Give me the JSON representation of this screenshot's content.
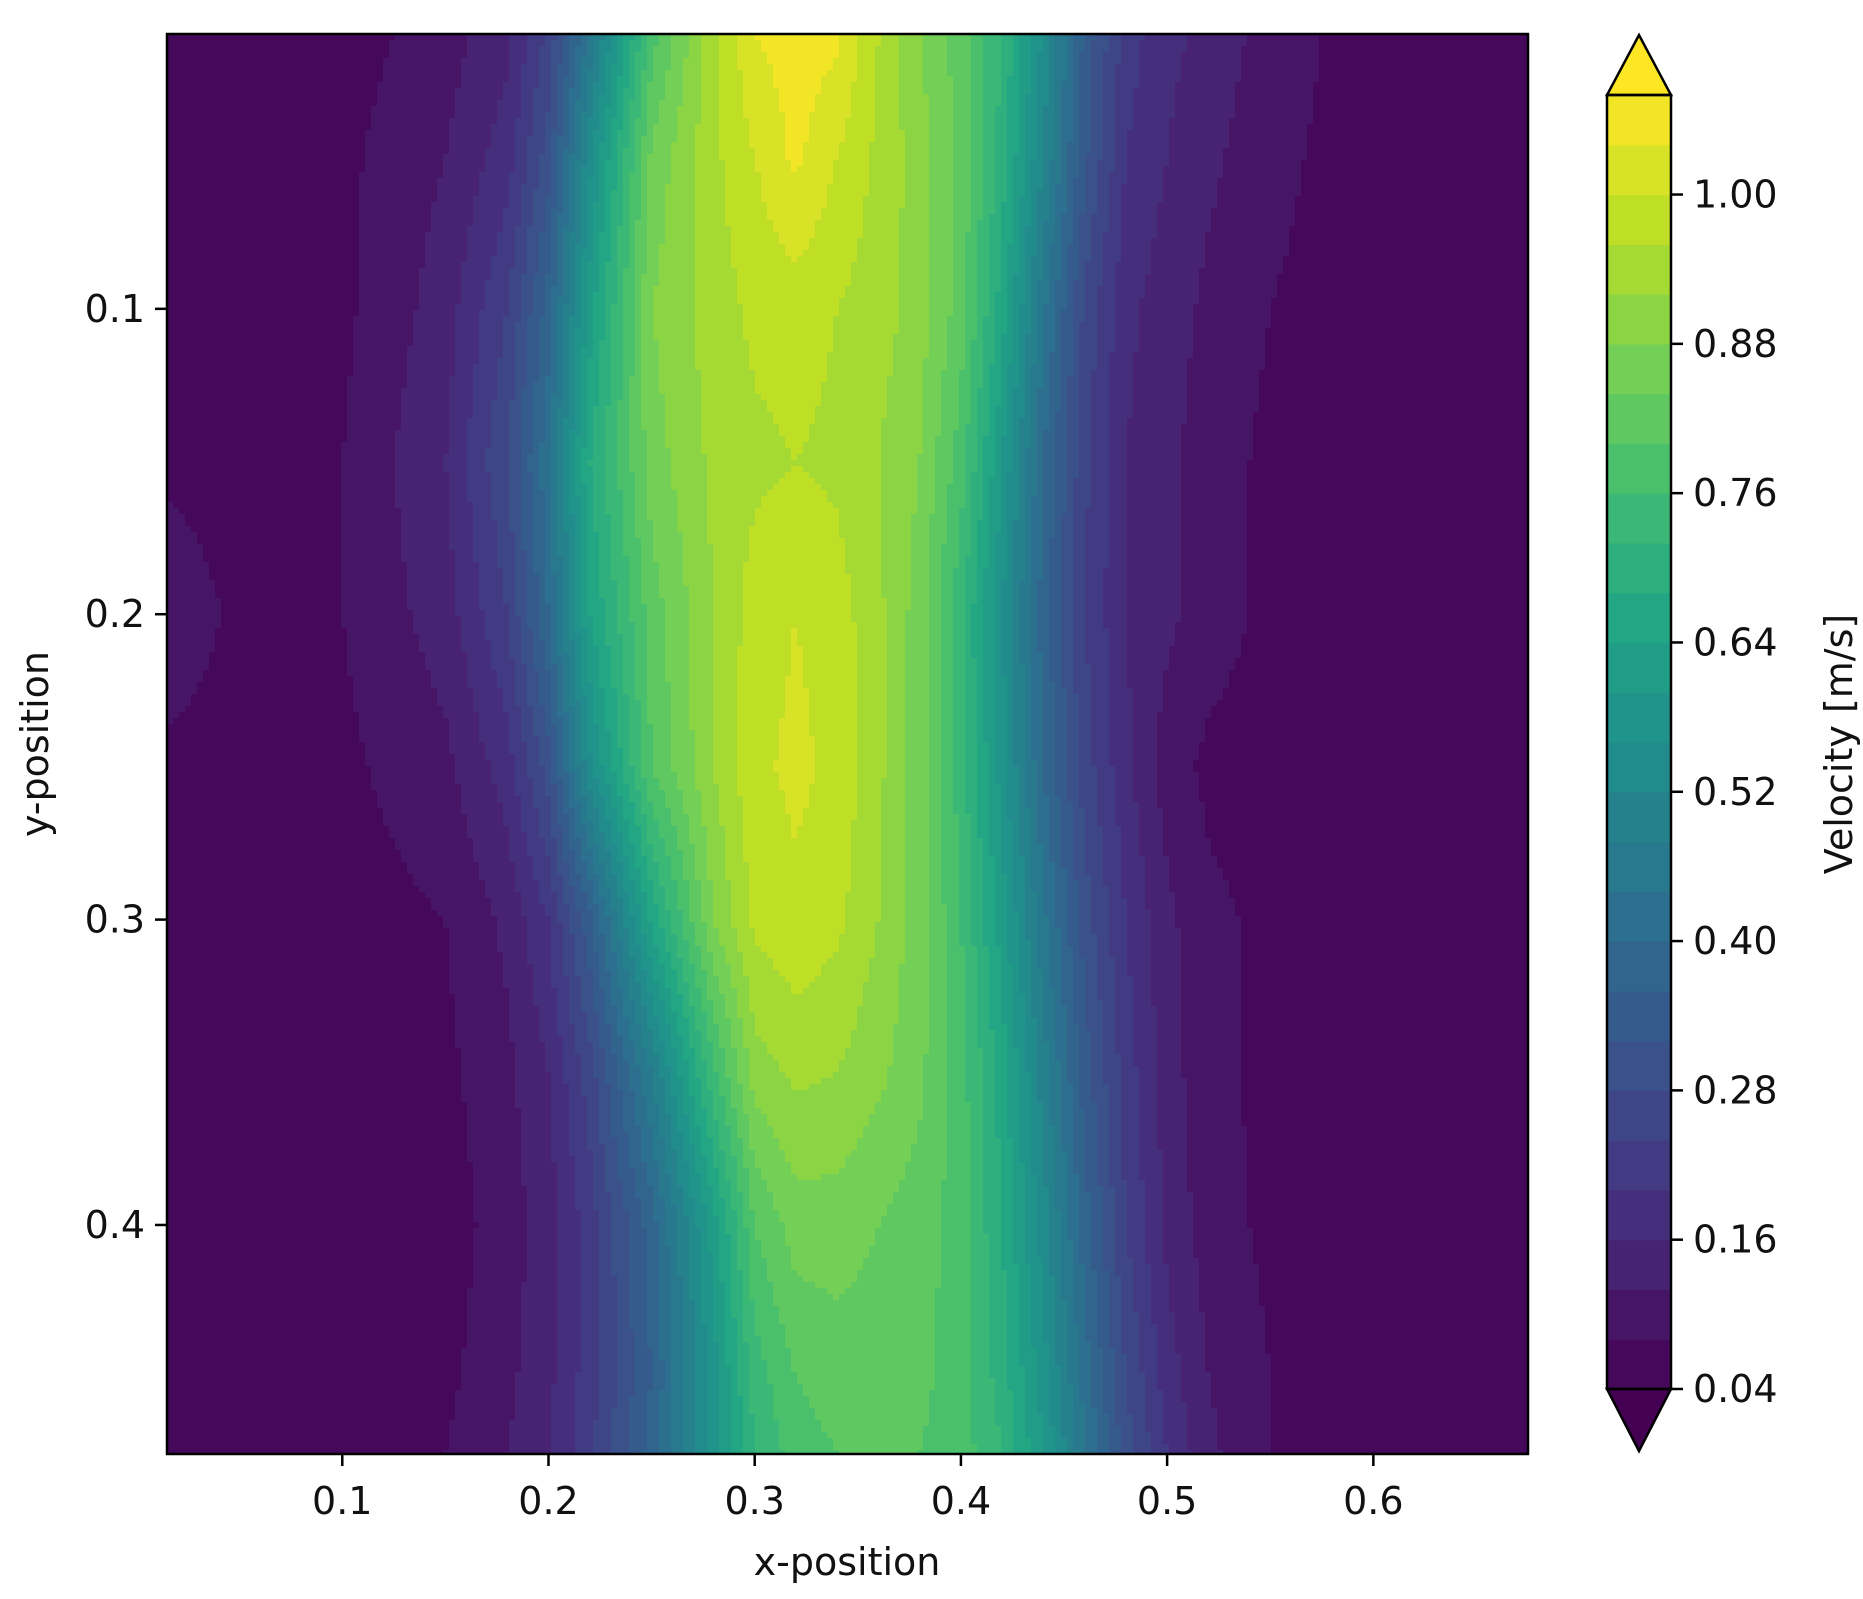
{
  "chart_data": {
    "type": "heatmap",
    "title": "",
    "xlabel": "x-position",
    "ylabel": "y-position",
    "xlim": [
      0.015,
      0.675
    ],
    "ylim": [
      0.475,
      0.01
    ],
    "y_inverted": true,
    "grid": false,
    "xticks": [
      0.1,
      0.2,
      0.3,
      0.4,
      0.5,
      0.6
    ],
    "xtick_labels": [
      "0.1",
      "0.2",
      "0.3",
      "0.4",
      "0.5",
      "0.6"
    ],
    "yticks": [
      0.1,
      0.2,
      0.3,
      0.4
    ],
    "ytick_labels": [
      "0.1",
      "0.2",
      "0.3",
      "0.4"
    ],
    "colorbar": {
      "label": "Velocity [m/s]",
      "colormap": "viridis",
      "range": [
        0.04,
        1.08
      ],
      "extend": "both",
      "ticks": [
        0.04,
        0.16,
        0.28,
        0.4,
        0.52,
        0.64,
        0.76,
        0.88,
        1.0
      ],
      "tick_labels": [
        "0.04",
        "0.16",
        "0.28",
        "0.40",
        "0.52",
        "0.64",
        "0.76",
        "0.88",
        "1.00"
      ]
    },
    "y_grid": [
      0.01,
      0.05,
      0.1,
      0.15,
      0.2,
      0.25,
      0.3,
      0.35,
      0.4,
      0.45,
      0.475
    ],
    "x_grid": [
      0.015,
      0.05,
      0.1,
      0.15,
      0.18,
      0.2,
      0.22,
      0.25,
      0.28,
      0.3,
      0.32,
      0.34,
      0.36,
      0.38,
      0.4,
      0.42,
      0.44,
      0.46,
      0.48,
      0.5,
      0.52,
      0.55,
      0.6,
      0.675
    ],
    "velocity": [
      [
        0.06,
        0.06,
        0.06,
        0.1,
        0.15,
        0.25,
        0.45,
        0.78,
        0.95,
        1.04,
        1.06,
        1.05,
        0.96,
        0.88,
        0.82,
        0.72,
        0.55,
        0.35,
        0.22,
        0.17,
        0.15,
        0.1,
        0.06,
        0.06
      ],
      [
        0.06,
        0.06,
        0.07,
        0.12,
        0.18,
        0.3,
        0.55,
        0.85,
        0.95,
        1.0,
        1.05,
        1.0,
        0.95,
        0.9,
        0.83,
        0.7,
        0.52,
        0.33,
        0.2,
        0.16,
        0.13,
        0.09,
        0.06,
        0.06
      ],
      [
        0.06,
        0.06,
        0.07,
        0.14,
        0.24,
        0.38,
        0.62,
        0.88,
        0.94,
        0.97,
        0.98,
        0.96,
        0.94,
        0.9,
        0.82,
        0.66,
        0.45,
        0.27,
        0.17,
        0.14,
        0.11,
        0.08,
        0.06,
        0.06
      ],
      [
        0.07,
        0.06,
        0.08,
        0.16,
        0.28,
        0.43,
        0.68,
        0.86,
        0.93,
        0.95,
        0.96,
        0.95,
        0.92,
        0.88,
        0.78,
        0.6,
        0.4,
        0.25,
        0.16,
        0.13,
        0.1,
        0.07,
        0.06,
        0.06
      ],
      [
        0.11,
        0.07,
        0.08,
        0.14,
        0.24,
        0.4,
        0.64,
        0.82,
        0.92,
        0.98,
        1.0,
        0.98,
        0.93,
        0.86,
        0.73,
        0.56,
        0.38,
        0.24,
        0.16,
        0.13,
        0.1,
        0.07,
        0.06,
        0.06
      ],
      [
        0.07,
        0.06,
        0.07,
        0.11,
        0.18,
        0.3,
        0.55,
        0.8,
        0.92,
        0.99,
        1.01,
        0.99,
        0.93,
        0.86,
        0.74,
        0.58,
        0.4,
        0.26,
        0.17,
        0.1,
        0.07,
        0.06,
        0.06,
        0.06
      ],
      [
        0.06,
        0.06,
        0.06,
        0.08,
        0.13,
        0.2,
        0.35,
        0.65,
        0.88,
        0.97,
        0.99,
        0.97,
        0.92,
        0.86,
        0.76,
        0.62,
        0.45,
        0.3,
        0.2,
        0.13,
        0.09,
        0.07,
        0.06,
        0.06
      ],
      [
        0.06,
        0.06,
        0.05,
        0.07,
        0.11,
        0.16,
        0.26,
        0.48,
        0.75,
        0.9,
        0.93,
        0.92,
        0.89,
        0.85,
        0.78,
        0.66,
        0.5,
        0.34,
        0.22,
        0.14,
        0.09,
        0.07,
        0.06,
        0.06
      ],
      [
        0.06,
        0.06,
        0.05,
        0.06,
        0.1,
        0.14,
        0.22,
        0.38,
        0.62,
        0.8,
        0.86,
        0.86,
        0.84,
        0.82,
        0.78,
        0.68,
        0.54,
        0.38,
        0.24,
        0.15,
        0.1,
        0.07,
        0.06,
        0.06
      ],
      [
        0.06,
        0.06,
        0.06,
        0.07,
        0.11,
        0.15,
        0.22,
        0.36,
        0.58,
        0.74,
        0.8,
        0.82,
        0.82,
        0.81,
        0.78,
        0.7,
        0.58,
        0.42,
        0.28,
        0.18,
        0.12,
        0.08,
        0.06,
        0.06
      ],
      [
        0.06,
        0.06,
        0.06,
        0.08,
        0.12,
        0.16,
        0.23,
        0.38,
        0.58,
        0.72,
        0.78,
        0.8,
        0.81,
        0.8,
        0.78,
        0.72,
        0.6,
        0.45,
        0.3,
        0.2,
        0.13,
        0.08,
        0.06,
        0.06
      ]
    ]
  }
}
